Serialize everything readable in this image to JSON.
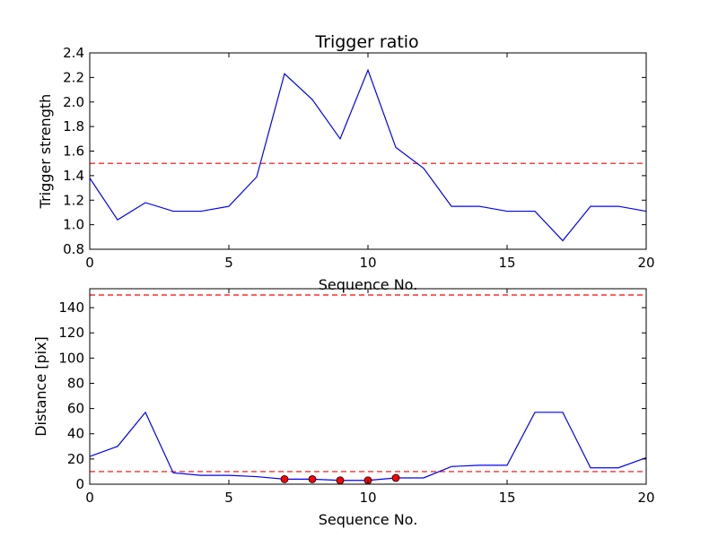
{
  "colors": {
    "line": "#0000ff",
    "threshold": "#ff0000",
    "marker_fill": "#ff0000",
    "marker_edge": "#000000"
  },
  "chart_data": [
    {
      "type": "line",
      "title": "Trigger ratio",
      "xlabel": "Sequence No.",
      "ylabel": "Trigger strength",
      "xlim": [
        0,
        20
      ],
      "ylim": [
        0.8,
        2.4
      ],
      "xticks": [
        "0",
        "5",
        "10",
        "15",
        "20"
      ],
      "yticks": [
        "0.8",
        "1.0",
        "1.2",
        "1.4",
        "1.6",
        "1.8",
        "2.0",
        "2.2",
        "2.4"
      ],
      "grid": false,
      "series": [
        {
          "x": [
            0,
            1,
            2,
            3,
            4,
            5,
            6,
            7,
            8,
            9,
            10,
            11,
            12,
            13,
            14,
            15,
            16,
            17,
            18,
            19,
            20
          ],
          "values": [
            1.38,
            1.04,
            1.18,
            1.11,
            1.11,
            1.15,
            1.39,
            2.23,
            2.02,
            1.7,
            2.26,
            1.63,
            1.46,
            1.15,
            1.15,
            1.11,
            1.11,
            0.87,
            1.15,
            1.15,
            1.11
          ]
        }
      ],
      "thresholds": [
        1.5
      ]
    },
    {
      "type": "line",
      "title": "",
      "xlabel": "Sequence No.",
      "ylabel": "Distance [pix]",
      "xlim": [
        0,
        20
      ],
      "ylim": [
        0,
        155
      ],
      "xticks": [
        "0",
        "5",
        "10",
        "15",
        "20"
      ],
      "yticks": [
        "0",
        "20",
        "40",
        "60",
        "80",
        "100",
        "120",
        "140"
      ],
      "grid": false,
      "series": [
        {
          "x": [
            0,
            1,
            2,
            3,
            4,
            5,
            6,
            7,
            8,
            9,
            10,
            11,
            12,
            13,
            14,
            15,
            16,
            17,
            18,
            19,
            20
          ],
          "values": [
            22,
            30,
            57,
            9,
            7,
            7,
            6,
            4,
            4,
            3,
            3,
            5,
            5,
            14,
            15,
            15,
            57,
            57,
            13,
            13,
            21
          ]
        }
      ],
      "markers": {
        "x": [
          7,
          8,
          9,
          10,
          11
        ],
        "values": [
          4,
          4,
          3,
          3,
          5
        ]
      },
      "thresholds": [
        150,
        10
      ]
    }
  ]
}
